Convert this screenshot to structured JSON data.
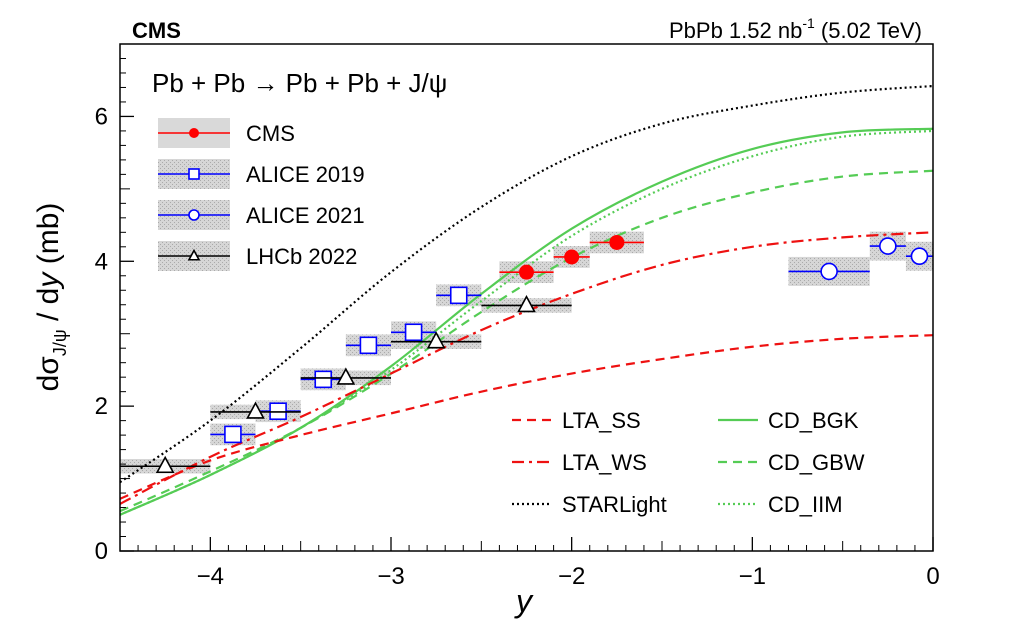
{
  "chart_data": {
    "type": "scatter",
    "title_left": "CMS",
    "title_right": {
      "main": "PbPb 1.52 nb",
      "sup": "-1",
      "tail": " (5.02 TeV)"
    },
    "process": "Pb + Pb → Pb + Pb + J/ψ",
    "xlabel": "y",
    "ylabel": {
      "pre": "dσ",
      "sub": "J/ψ",
      "post": " / d",
      "ital": "y",
      "unit": " (mb)"
    },
    "xlim": [
      -4.5,
      0
    ],
    "ylim": [
      0,
      7
    ],
    "xticks": [
      -4,
      -3,
      -2,
      -1,
      0
    ],
    "xtick_labels": [
      "−4",
      "−3",
      "−2",
      "−1",
      "0"
    ],
    "yticks": [
      0,
      2,
      4,
      6
    ],
    "ytick_labels": [
      "0",
      "2",
      "4",
      "6"
    ],
    "legend_points": [
      {
        "label": "CMS",
        "color": "#ff0000",
        "marker": "filled-circle"
      },
      {
        "label": "ALICE 2019",
        "color": "#0000ff",
        "marker": "open-square"
      },
      {
        "label": "ALICE 2021",
        "color": "#0000ff",
        "marker": "open-circle"
      },
      {
        "label": "LHCb  2022",
        "color": "#000000",
        "marker": "open-triangle"
      }
    ],
    "legend_models": [
      {
        "label": "LTA_SS",
        "color": "#ee1111",
        "dash": "dashed"
      },
      {
        "label": "LTA_WS",
        "color": "#ee1111",
        "dash": "dashdot"
      },
      {
        "label": "STARLight",
        "color": "#000000",
        "dash": "dotted"
      },
      {
        "label": "CD_BGK",
        "color": "#55cc55",
        "dash": "solid"
      },
      {
        "label": "CD_GBW",
        "color": "#55cc55",
        "dash": "dashed"
      },
      {
        "label": "CD_IIM",
        "color": "#55cc55",
        "dash": "dotted"
      }
    ],
    "data_series": [
      {
        "name": "CMS",
        "marker": "filled-circle",
        "color": "#ff0000",
        "points": [
          {
            "x": -2.25,
            "y": 3.85,
            "xerr": 0.15,
            "sys": 0.15
          },
          {
            "x": -2.0,
            "y": 4.06,
            "xerr": 0.1,
            "sys": 0.15
          },
          {
            "x": -1.75,
            "y": 4.26,
            "xerr": 0.15,
            "sys": 0.15
          }
        ]
      },
      {
        "name": "ALICE 2019",
        "marker": "open-square",
        "color": "#0000ff",
        "points": [
          {
            "x": -3.875,
            "y": 1.61,
            "xerr": 0.125,
            "sys": 0.15
          },
          {
            "x": -3.625,
            "y": 1.93,
            "xerr": 0.125,
            "sys": 0.15
          },
          {
            "x": -3.375,
            "y": 2.37,
            "xerr": 0.125,
            "sys": 0.15
          },
          {
            "x": -3.125,
            "y": 2.84,
            "xerr": 0.125,
            "sys": 0.15
          },
          {
            "x": -2.875,
            "y": 3.02,
            "xerr": 0.125,
            "sys": 0.15
          },
          {
            "x": -2.625,
            "y": 3.53,
            "xerr": 0.125,
            "sys": 0.15
          }
        ]
      },
      {
        "name": "ALICE 2021",
        "marker": "open-circle",
        "color": "#0000ff",
        "points": [
          {
            "x": -0.575,
            "y": 3.86,
            "xerr": 0.225,
            "sys": 0.2
          },
          {
            "x": -0.25,
            "y": 4.21,
            "xerr": 0.1,
            "sys": 0.2
          },
          {
            "x": -0.075,
            "y": 4.07,
            "xerr": 0.075,
            "sys": 0.2
          }
        ]
      },
      {
        "name": "LHCb 2022",
        "marker": "open-triangle",
        "color": "#000000",
        "points": [
          {
            "x": -4.25,
            "y": 1.17,
            "xerr": 0.25,
            "sys": 0.1
          },
          {
            "x": -3.75,
            "y": 1.92,
            "xerr": 0.25,
            "sys": 0.1
          },
          {
            "x": -3.25,
            "y": 2.39,
            "xerr": 0.25,
            "sys": 0.1
          },
          {
            "x": -2.75,
            "y": 2.89,
            "xerr": 0.25,
            "sys": 0.1
          },
          {
            "x": -2.25,
            "y": 3.39,
            "xerr": 0.25,
            "sys": 0.1
          }
        ]
      }
    ],
    "model_curves": [
      {
        "name": "STARLight",
        "color": "#000000",
        "dash": "dotted",
        "x": [
          -4.5,
          -4,
          -3.5,
          -3,
          -2.5,
          -2,
          -1.5,
          -1,
          -0.5,
          0
        ],
        "y": [
          0.95,
          1.8,
          2.8,
          3.85,
          4.75,
          5.45,
          5.9,
          6.15,
          6.33,
          6.42
        ]
      },
      {
        "name": "CD_BGK",
        "color": "#55cc55",
        "dash": "solid",
        "x": [
          -4.5,
          -4,
          -3.5,
          -3,
          -2.5,
          -2,
          -1.5,
          -1,
          -0.5,
          0
        ],
        "y": [
          0.5,
          1.05,
          1.7,
          2.55,
          3.55,
          4.45,
          5.1,
          5.55,
          5.78,
          5.83
        ]
      },
      {
        "name": "CD_IIM",
        "color": "#55cc55",
        "dash": "dotted",
        "x": [
          -4.5,
          -4,
          -3.5,
          -3,
          -2.5,
          -2,
          -1.5,
          -1,
          -0.5,
          0
        ],
        "y": [
          0.5,
          1.05,
          1.7,
          2.5,
          3.45,
          4.35,
          5.0,
          5.45,
          5.72,
          5.8
        ]
      },
      {
        "name": "CD_GBW",
        "color": "#55cc55",
        "dash": "dashed",
        "x": [
          -4.5,
          -4,
          -3.5,
          -3,
          -2.5,
          -2,
          -1.5,
          -1,
          -0.5,
          0
        ],
        "y": [
          0.55,
          1.1,
          1.7,
          2.45,
          3.3,
          4.05,
          4.6,
          4.95,
          5.17,
          5.25
        ]
      },
      {
        "name": "LTA_WS",
        "color": "#ee1111",
        "dash": "dashdot",
        "x": [
          -4.5,
          -4,
          -3.5,
          -3,
          -2.5,
          -2,
          -1.5,
          -1,
          -0.5,
          0
        ],
        "y": [
          0.65,
          1.3,
          1.85,
          2.45,
          3.05,
          3.55,
          3.95,
          4.2,
          4.33,
          4.4
        ]
      },
      {
        "name": "LTA_SS",
        "color": "#ee1111",
        "dash": "dashed",
        "x": [
          -4.5,
          -4,
          -3.5,
          -3,
          -2.5,
          -2,
          -1.5,
          -1,
          -0.5,
          0
        ],
        "y": [
          0.72,
          1.25,
          1.6,
          1.9,
          2.2,
          2.45,
          2.65,
          2.82,
          2.93,
          2.98
        ]
      }
    ]
  }
}
